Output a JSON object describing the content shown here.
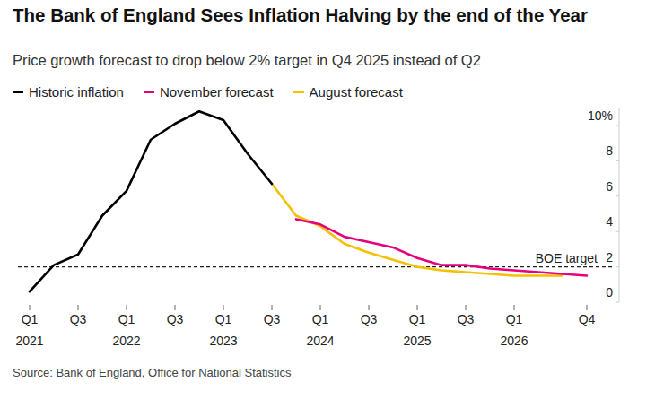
{
  "chart_data": {
    "type": "line",
    "title": "The Bank of England Sees Inflation Halving by the end of the Year",
    "subtitle": "Price growth forecast to drop below 2% target in Q4 2025 instead of Q2",
    "source": "Source: Bank of England, Office for National Statistics",
    "categories": [
      "Q1 2021",
      null,
      "Q3",
      null,
      "Q1 2022",
      null,
      "Q3",
      null,
      "Q1 2023",
      null,
      "Q3",
      null,
      "Q1 2024",
      null,
      "Q3",
      null,
      "Q1 2025",
      null,
      "Q3",
      null,
      "Q1 2026",
      null,
      null,
      "Q4"
    ],
    "series": [
      {
        "name": "Historic inflation",
        "color": "#000000",
        "values": [
          0.6,
          2.1,
          2.7,
          4.9,
          6.3,
          9.2,
          10.1,
          10.8,
          10.3,
          8.4,
          6.7,
          null,
          null,
          null,
          null,
          null,
          null,
          null,
          null,
          null,
          null,
          null,
          null,
          null
        ]
      },
      {
        "name": "November forecast",
        "color": "#e5007d",
        "values": [
          null,
          null,
          null,
          null,
          null,
          null,
          null,
          null,
          null,
          null,
          null,
          4.7,
          4.4,
          3.7,
          3.4,
          3.1,
          2.5,
          2.1,
          2.1,
          1.9,
          1.8,
          1.7,
          1.6,
          1.5
        ]
      },
      {
        "name": "August forecast",
        "color": "#f5c000",
        "values": [
          null,
          null,
          null,
          null,
          null,
          null,
          null,
          null,
          null,
          null,
          6.7,
          4.9,
          4.3,
          3.3,
          2.8,
          2.4,
          2.0,
          1.8,
          1.7,
          1.6,
          1.5,
          1.5,
          1.5,
          null
        ]
      }
    ],
    "annotations": [
      {
        "text": "BOE target",
        "y": 2
      }
    ],
    "ylim": [
      0,
      11
    ],
    "yticks": [
      0,
      2,
      4,
      6,
      8,
      {
        "value": 10,
        "label": "10%"
      }
    ],
    "grid": false,
    "legend": "top-left"
  }
}
